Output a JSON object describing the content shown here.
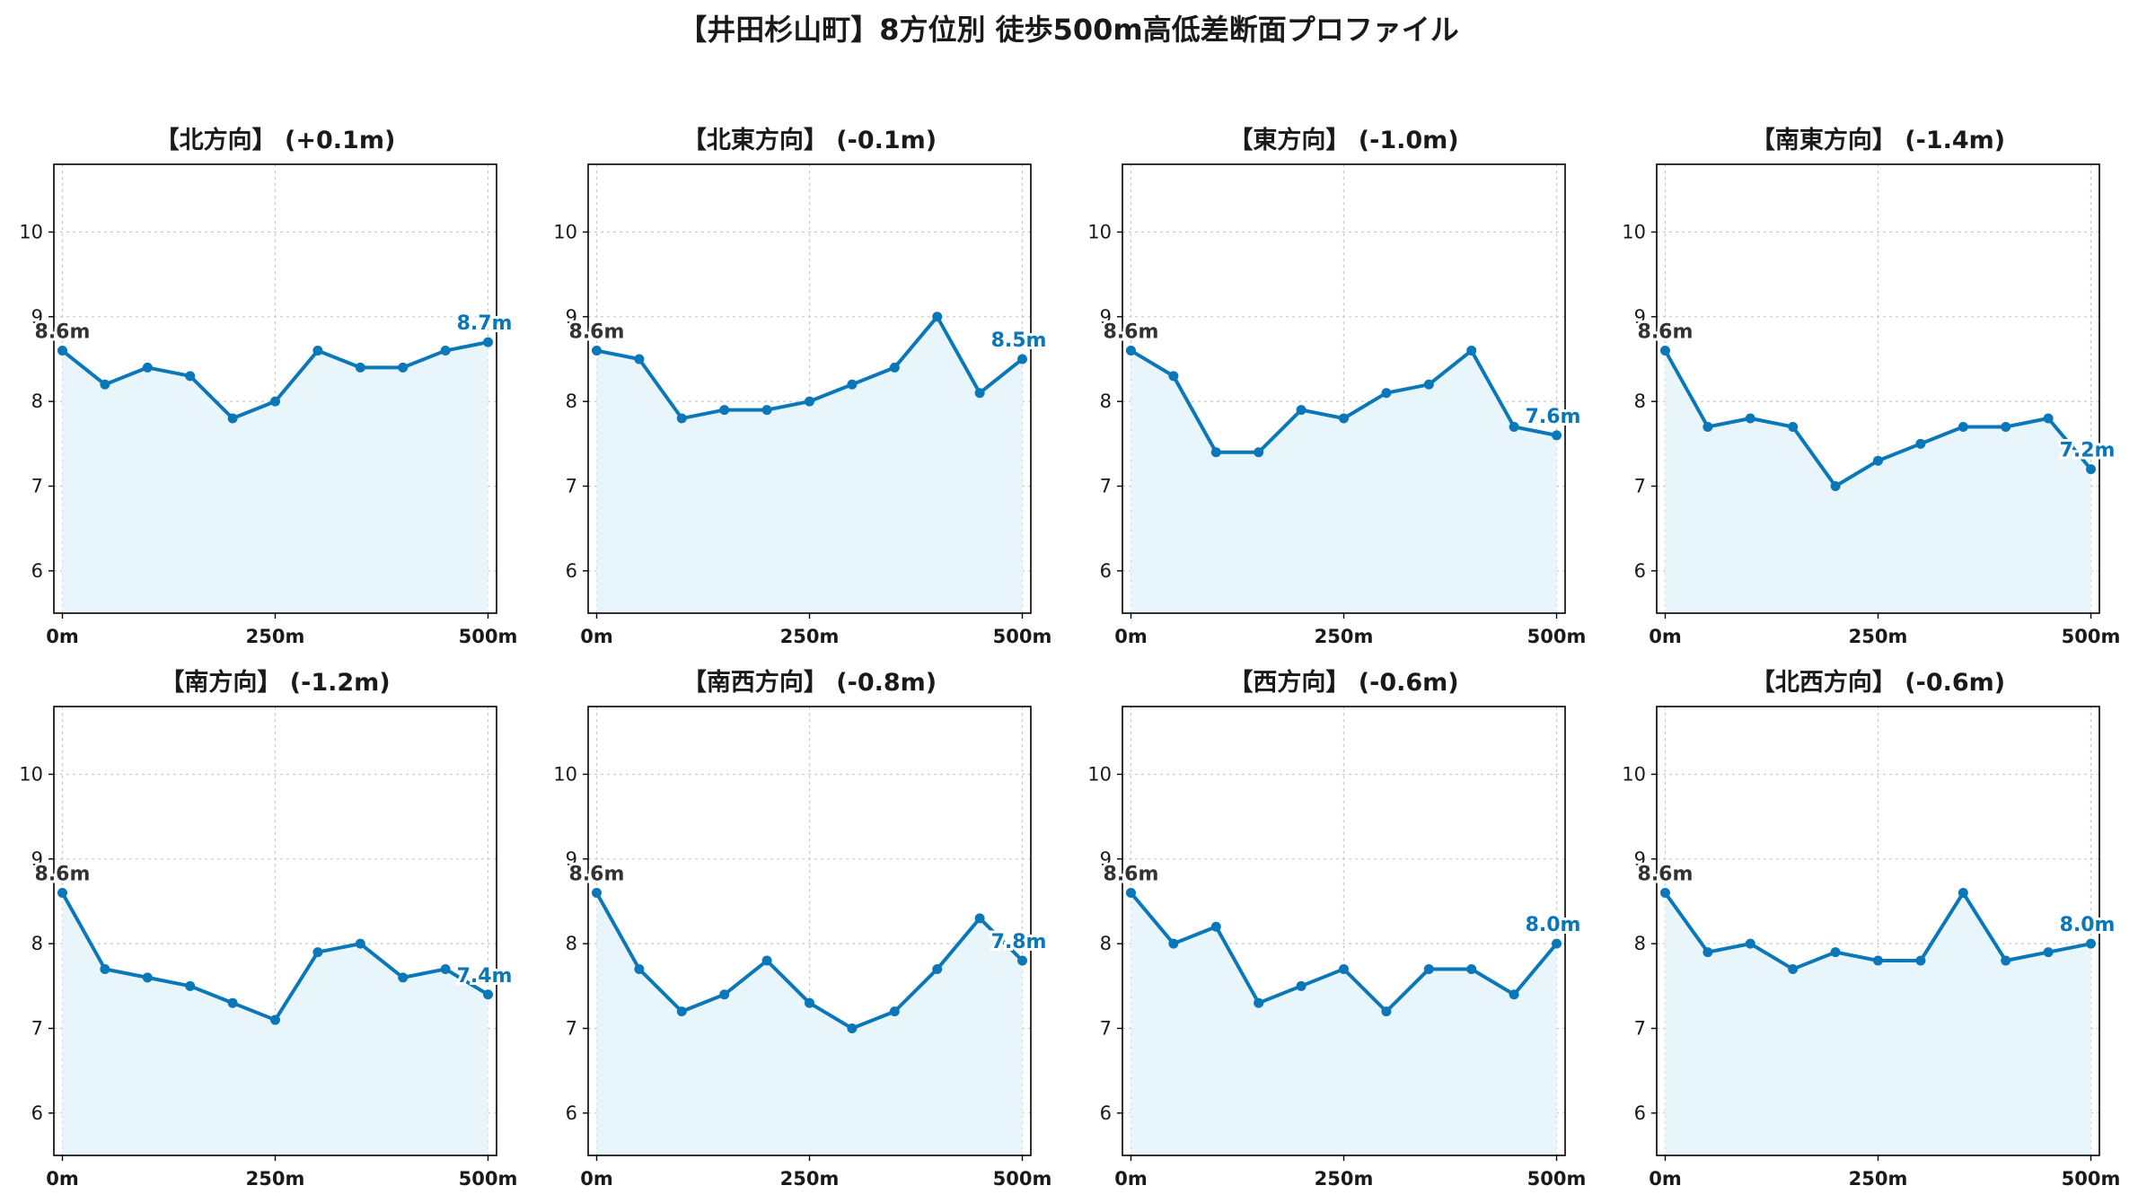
{
  "figure": {
    "title": "【井田杉山町】8方位別 徒歩500m高低差断面プロファイル"
  },
  "colors": {
    "line": "#0a77b8",
    "fill": "#e8f6fb",
    "grid": "#c8c8c8",
    "start_label": "#333333",
    "end_label": "#0a77b8"
  },
  "chart_data": [
    {
      "type": "area",
      "title": "【北方向】 (+0.1m)",
      "x": [
        0,
        50,
        100,
        150,
        200,
        250,
        300,
        350,
        400,
        450,
        500
      ],
      "x_tick_labels": [
        "0m",
        "250m",
        "500m"
      ],
      "y_ticks": [
        "6",
        "7",
        "8",
        "9",
        "10"
      ],
      "ylim": [
        5.5,
        10.8
      ],
      "grid": true,
      "values": [
        8.6,
        8.2,
        8.4,
        8.3,
        7.8,
        8.0,
        8.6,
        8.4,
        8.4,
        8.6,
        8.7
      ],
      "start_label": "8.6m",
      "end_label": "8.7m"
    },
    {
      "type": "area",
      "title": "【北東方向】 (-0.1m)",
      "x": [
        0,
        50,
        100,
        150,
        200,
        250,
        300,
        350,
        400,
        450,
        500
      ],
      "x_tick_labels": [
        "0m",
        "250m",
        "500m"
      ],
      "y_ticks": [
        "6",
        "7",
        "8",
        "9",
        "10"
      ],
      "ylim": [
        5.5,
        10.8
      ],
      "grid": true,
      "values": [
        8.6,
        8.5,
        7.8,
        7.9,
        7.9,
        8.0,
        8.2,
        8.4,
        9.0,
        8.1,
        8.5
      ],
      "start_label": "8.6m",
      "end_label": "8.5m"
    },
    {
      "type": "area",
      "title": "【東方向】 (-1.0m)",
      "x": [
        0,
        50,
        100,
        150,
        200,
        250,
        300,
        350,
        400,
        450,
        500
      ],
      "x_tick_labels": [
        "0m",
        "250m",
        "500m"
      ],
      "y_ticks": [
        "6",
        "7",
        "8",
        "9",
        "10"
      ],
      "ylim": [
        5.5,
        10.8
      ],
      "grid": true,
      "values": [
        8.6,
        8.3,
        7.4,
        7.4,
        7.9,
        7.8,
        8.1,
        8.2,
        8.6,
        7.7,
        7.6
      ],
      "start_label": "8.6m",
      "end_label": "7.6m"
    },
    {
      "type": "area",
      "title": "【南東方向】 (-1.4m)",
      "x": [
        0,
        50,
        100,
        150,
        200,
        250,
        300,
        350,
        400,
        450,
        500
      ],
      "x_tick_labels": [
        "0m",
        "250m",
        "500m"
      ],
      "y_ticks": [
        "6",
        "7",
        "8",
        "9",
        "10"
      ],
      "ylim": [
        5.5,
        10.8
      ],
      "grid": true,
      "values": [
        8.6,
        7.7,
        7.8,
        7.7,
        7.0,
        7.3,
        7.5,
        7.7,
        7.7,
        7.8,
        7.2
      ],
      "start_label": "8.6m",
      "end_label": "7.2m"
    },
    {
      "type": "area",
      "title": "【南方向】 (-1.2m)",
      "x": [
        0,
        50,
        100,
        150,
        200,
        250,
        300,
        350,
        400,
        450,
        500
      ],
      "x_tick_labels": [
        "0m",
        "250m",
        "500m"
      ],
      "y_ticks": [
        "6",
        "7",
        "8",
        "9",
        "10"
      ],
      "ylim": [
        5.5,
        10.8
      ],
      "grid": true,
      "values": [
        8.6,
        7.7,
        7.6,
        7.5,
        7.3,
        7.1,
        7.9,
        8.0,
        7.6,
        7.7,
        7.4
      ],
      "start_label": "8.6m",
      "end_label": "7.4m"
    },
    {
      "type": "area",
      "title": "【南西方向】 (-0.8m)",
      "x": [
        0,
        50,
        100,
        150,
        200,
        250,
        300,
        350,
        400,
        450,
        500
      ],
      "x_tick_labels": [
        "0m",
        "250m",
        "500m"
      ],
      "y_ticks": [
        "6",
        "7",
        "8",
        "9",
        "10"
      ],
      "ylim": [
        5.5,
        10.8
      ],
      "grid": true,
      "values": [
        8.6,
        7.7,
        7.2,
        7.4,
        7.8,
        7.3,
        7.0,
        7.2,
        7.7,
        8.3,
        7.8
      ],
      "start_label": "8.6m",
      "end_label": "7.8m"
    },
    {
      "type": "area",
      "title": "【西方向】 (-0.6m)",
      "x": [
        0,
        50,
        100,
        150,
        200,
        250,
        300,
        350,
        400,
        450,
        500
      ],
      "x_tick_labels": [
        "0m",
        "250m",
        "500m"
      ],
      "y_ticks": [
        "6",
        "7",
        "8",
        "9",
        "10"
      ],
      "ylim": [
        5.5,
        10.8
      ],
      "grid": true,
      "values": [
        8.6,
        8.0,
        8.2,
        7.3,
        7.5,
        7.7,
        7.2,
        7.7,
        7.7,
        7.4,
        8.0
      ],
      "start_label": "8.6m",
      "end_label": "8.0m"
    },
    {
      "type": "area",
      "title": "【北西方向】 (-0.6m)",
      "x": [
        0,
        50,
        100,
        150,
        200,
        250,
        300,
        350,
        400,
        450,
        500
      ],
      "x_tick_labels": [
        "0m",
        "250m",
        "500m"
      ],
      "y_ticks": [
        "6",
        "7",
        "8",
        "9",
        "10"
      ],
      "ylim": [
        5.5,
        10.8
      ],
      "grid": true,
      "values": [
        8.6,
        7.9,
        8.0,
        7.7,
        7.9,
        7.8,
        7.8,
        8.6,
        7.8,
        7.9,
        8.0
      ],
      "start_label": "8.6m",
      "end_label": "8.0m"
    }
  ]
}
